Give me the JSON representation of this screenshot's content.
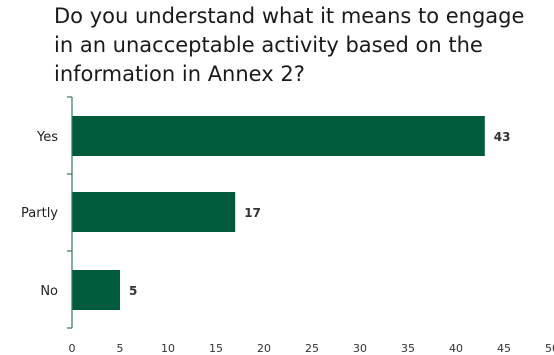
{
  "chart_data": {
    "type": "bar",
    "orientation": "horizontal",
    "title": "Do you understand what it means to engage in an unacceptable activity based on the information in Annex 2?",
    "categories": [
      "Yes",
      "Partly",
      "No"
    ],
    "values": [
      43,
      17,
      5
    ],
    "data_labels": [
      "43",
      "17",
      "5"
    ],
    "xlim": [
      0,
      50
    ],
    "x_ticks": [
      "0",
      "5",
      "10",
      "15",
      "20",
      "25",
      "30",
      "35",
      "40",
      "45",
      "50"
    ],
    "grid": false,
    "legend": "none",
    "bar_color": "#005a3c",
    "axis_color": "#2e7d5b"
  }
}
